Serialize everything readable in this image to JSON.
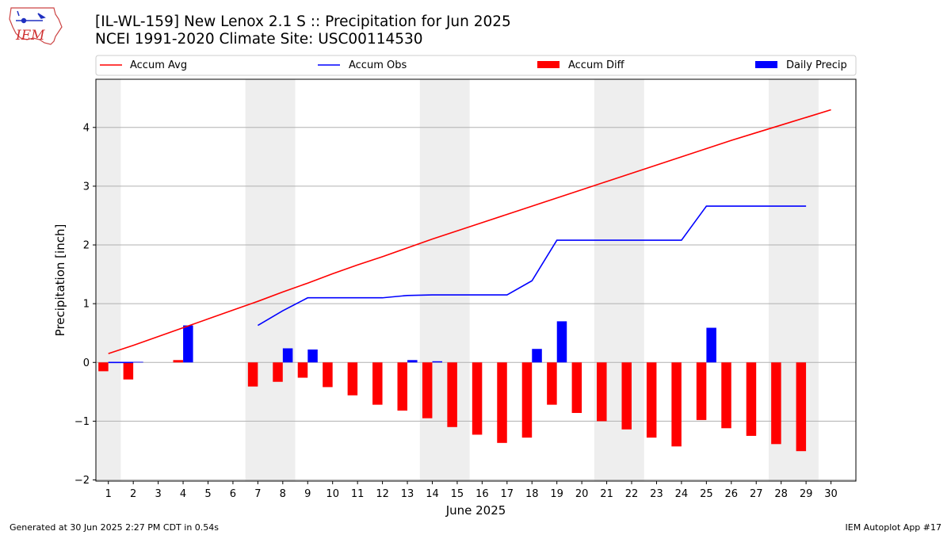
{
  "logo": {
    "text": "IEM"
  },
  "header": {
    "title_line1": "[IL-WL-159] New Lenox 2.1 S :: Precipitation for Jun 2025",
    "title_line2": "NCEI 1991-2020 Climate Site: USC00114530"
  },
  "footer": {
    "left": "Generated at 30 Jun 2025 2:27 PM CDT in 0.54s",
    "right": "IEM Autoplot App #17"
  },
  "chart_data": {
    "type": "bar",
    "xlabel": "June 2025",
    "ylabel": "Precipitation [inch]",
    "xlim": [
      0.5,
      31
    ],
    "ylim": [
      -2.02,
      4.82
    ],
    "x_ticks": [
      1,
      2,
      3,
      4,
      5,
      6,
      7,
      8,
      9,
      10,
      11,
      12,
      13,
      14,
      15,
      16,
      17,
      18,
      19,
      20,
      21,
      22,
      23,
      24,
      25,
      26,
      27,
      28,
      29,
      30
    ],
    "y_ticks": [
      -2,
      -1,
      0,
      1,
      2,
      3,
      4
    ],
    "y_tick_labels": [
      "−2",
      "−1",
      "0",
      "1",
      "2",
      "3",
      "4"
    ],
    "grid": "horizontal",
    "legend_placement": "top",
    "weekend_shading": [
      [
        0.5,
        1.5
      ],
      [
        6.5,
        8.5
      ],
      [
        13.5,
        15.5
      ],
      [
        20.5,
        22.5
      ],
      [
        27.5,
        29.5
      ]
    ],
    "series": [
      {
        "name": "Accum Avg",
        "kind": "line",
        "color": "#ff0000",
        "x": [
          1,
          2,
          3,
          4,
          5,
          6,
          7,
          8,
          9,
          10,
          11,
          12,
          13,
          14,
          15,
          16,
          17,
          18,
          19,
          20,
          21,
          22,
          23,
          24,
          25,
          26,
          27,
          28,
          29,
          30
        ],
        "values": [
          0.15,
          0.29,
          0.44,
          0.59,
          0.74,
          0.89,
          1.04,
          1.2,
          1.35,
          1.51,
          1.66,
          1.8,
          1.95,
          2.1,
          2.24,
          2.38,
          2.52,
          2.66,
          2.8,
          2.94,
          3.08,
          3.22,
          3.36,
          3.5,
          3.64,
          3.78,
          3.91,
          4.04,
          4.17,
          4.3
        ]
      },
      {
        "name": "Accum Obs",
        "kind": "line",
        "color": "#0000ff",
        "segments": [
          {
            "x": [
              1,
              2
            ],
            "values": [
              0.0,
              0.0
            ]
          },
          {
            "x": [
              7,
              8,
              9,
              10,
              11,
              12,
              13,
              14,
              15,
              16,
              17,
              18,
              19,
              20,
              21,
              22,
              23,
              24,
              25,
              26,
              27,
              28,
              29
            ],
            "values": [
              0.63,
              0.88,
              1.1,
              1.1,
              1.1,
              1.1,
              1.14,
              1.15,
              1.15,
              1.15,
              1.15,
              1.39,
              2.08,
              2.08,
              2.08,
              2.08,
              2.08,
              2.08,
              2.66,
              2.66,
              2.66,
              2.66,
              2.66
            ]
          }
        ]
      },
      {
        "name": "Accum Diff",
        "kind": "bar",
        "color": "#ff0000",
        "offset": -0.2,
        "x": [
          1,
          2,
          4,
          7,
          8,
          9,
          10,
          11,
          12,
          13,
          14,
          15,
          16,
          17,
          18,
          19,
          20,
          21,
          22,
          23,
          24,
          25,
          26,
          27,
          28,
          29
        ],
        "values": [
          -0.15,
          -0.29,
          0.04,
          -0.41,
          -0.33,
          -0.26,
          -0.42,
          -0.56,
          -0.72,
          -0.82,
          -0.95,
          -1.1,
          -1.23,
          -1.37,
          -1.28,
          -0.72,
          -0.86,
          -1.0,
          -1.14,
          -1.28,
          -1.43,
          -0.98,
          -1.12,
          -1.25,
          -1.39,
          -1.51
        ]
      },
      {
        "name": "Daily Precip",
        "kind": "bar",
        "color": "#0000ff",
        "offset": 0.2,
        "x": [
          1,
          2,
          4,
          8,
          9,
          13,
          14,
          18,
          19,
          25
        ],
        "values": [
          0.01,
          0.01,
          0.63,
          0.24,
          0.22,
          0.04,
          0.02,
          0.23,
          0.7,
          0.59
        ]
      }
    ]
  }
}
